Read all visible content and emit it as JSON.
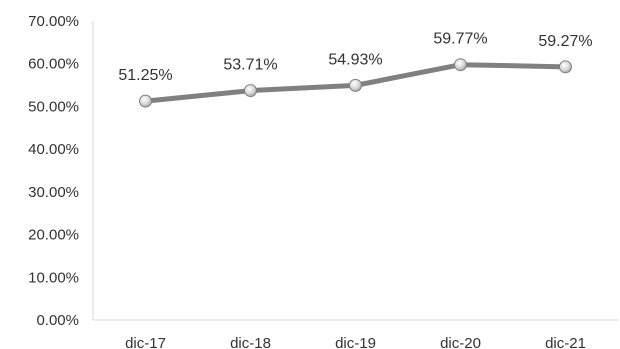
{
  "chart_data": {
    "type": "line",
    "title": "",
    "xlabel": "",
    "ylabel": "",
    "categories": [
      "dic-17",
      "dic-18",
      "dic-19",
      "dic-20",
      "dic-21"
    ],
    "series": [
      {
        "values": [
          51.25,
          53.71,
          54.93,
          59.77,
          59.27
        ],
        "labels": [
          "51.25%",
          "53.71%",
          "54.93%",
          "59.77%",
          "59.27%"
        ],
        "color": "#808080"
      }
    ],
    "y_ticks": [
      "0.00%",
      "10.00%",
      "20.00%",
      "30.00%",
      "40.00%",
      "50.00%",
      "60.00%",
      "70.00%"
    ],
    "y_tick_values": [
      0,
      10,
      20,
      30,
      40,
      50,
      60,
      70
    ],
    "ylim": [
      0,
      70
    ],
    "grid": false,
    "legend": "none",
    "marker": "circle",
    "axis_color": "#d9d9d9"
  }
}
